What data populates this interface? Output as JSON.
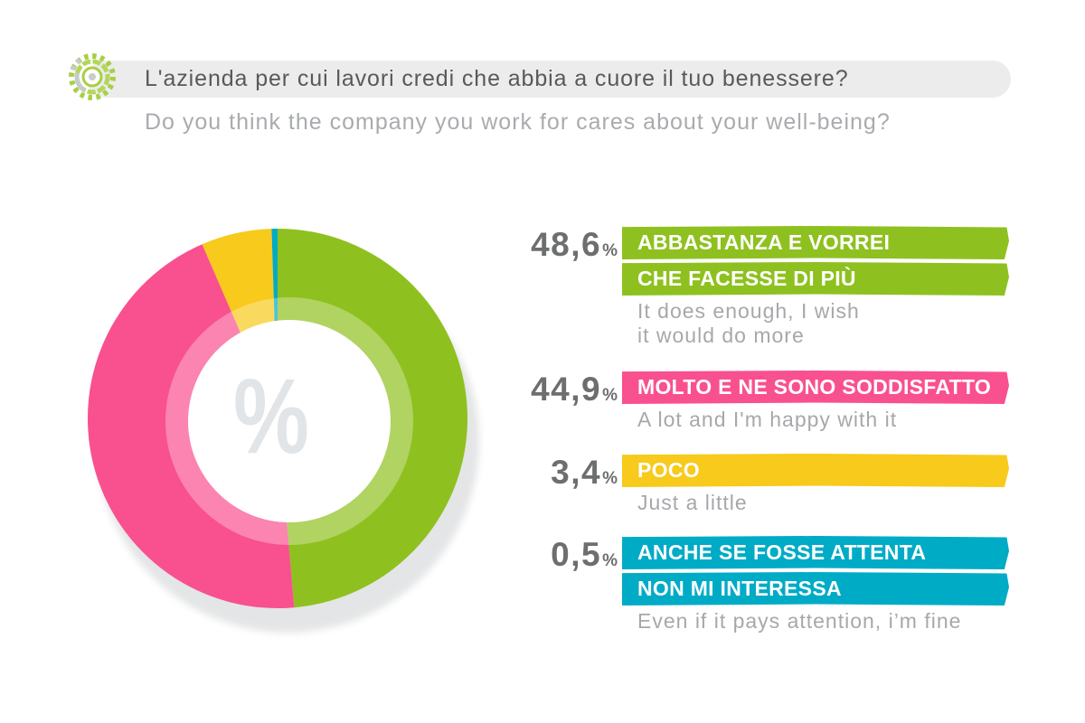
{
  "header": {
    "icon": "gear-icon"
  },
  "chart_data": {
    "type": "pie",
    "donut": true,
    "title": "L'azienda per cui lavori credi che abbia a cuore il tuo benessere?",
    "subtitle": "Do you think the company you work for cares about your well-being?",
    "center_label": "%",
    "unit": "%",
    "legend_position": "right",
    "slices": [
      {
        "value": 48.6,
        "value_label": "48,6",
        "label_lines": [
          "ABBASTANZA E VORREI",
          "CHE FACESSE DI PIÙ"
        ],
        "description_lines": [
          "It does enough, I wish",
          "it would do more"
        ],
        "color": "#8ec11f"
      },
      {
        "value": 44.9,
        "value_label": "44,9",
        "label_lines": [
          "MOLTO E NE SONO SODDISFATTO"
        ],
        "description_lines": [
          "A lot and I'm happy with it"
        ],
        "color": "#f9508f"
      },
      {
        "value": 3.4,
        "value_label": "3,4",
        "label_lines": [
          "POCO"
        ],
        "description_lines": [
          "Just a little"
        ],
        "color": "#f7ca1b"
      },
      {
        "value": 0.5,
        "value_label": "0,5",
        "label_lines": [
          "ANCHE SE FOSSE ATTENTA",
          "NON MI INTERESSA"
        ],
        "description_lines": [
          "Even if it pays attention, i’m fine"
        ],
        "color": "#00abc6"
      }
    ]
  }
}
